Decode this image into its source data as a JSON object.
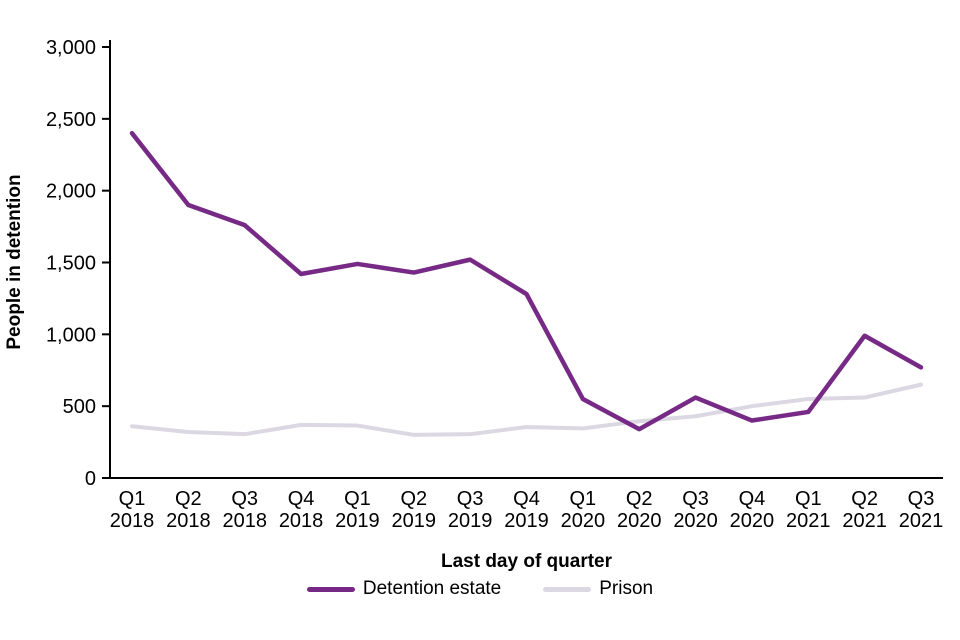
{
  "chart_data": {
    "type": "line",
    "xlabel": "Last day of quarter",
    "ylabel": "People in detention",
    "categories": [
      "Q1 2018",
      "Q2 2018",
      "Q3 2018",
      "Q4 2018",
      "Q1 2019",
      "Q2 2019",
      "Q3 2019",
      "Q4 2019",
      "Q1 2020",
      "Q2 2020",
      "Q3 2020",
      "Q4 2020",
      "Q1 2021",
      "Q2 2021",
      "Q3 2021"
    ],
    "series": [
      {
        "name": "Detention estate",
        "color": "#772a85",
        "values": [
          2400,
          1900,
          1760,
          1420,
          1490,
          1430,
          1520,
          1280,
          550,
          340,
          560,
          400,
          460,
          990,
          770
        ]
      },
      {
        "name": "Prison",
        "color": "#dbd8e3",
        "values": [
          360,
          320,
          305,
          370,
          365,
          300,
          305,
          355,
          345,
          395,
          430,
          500,
          550,
          560,
          650
        ]
      }
    ],
    "ylim": [
      0,
      3000
    ],
    "ytick_step": 500,
    "grid": false,
    "legend_position": "bottom",
    "axis_color": "#000000"
  }
}
